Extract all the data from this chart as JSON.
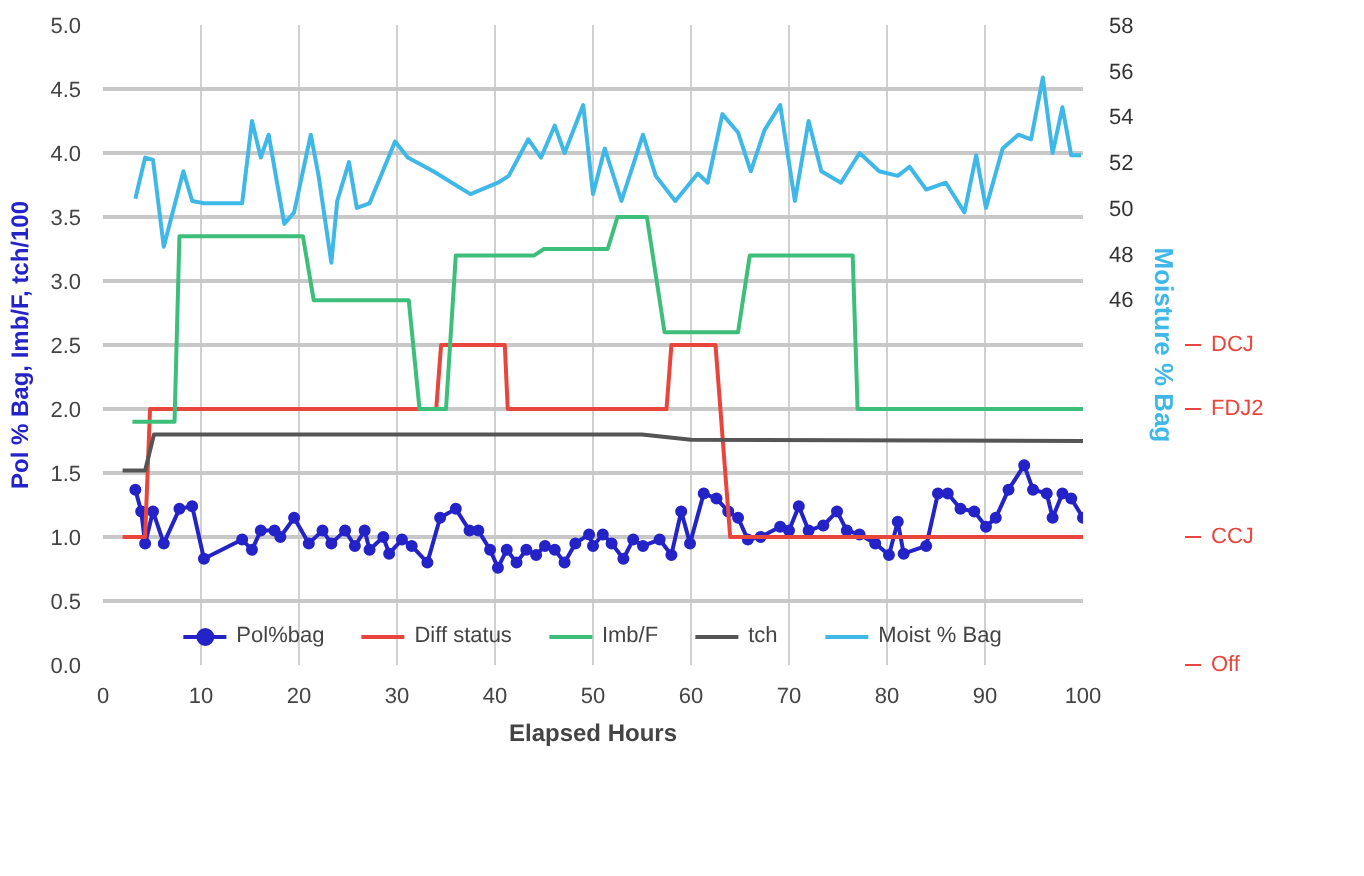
{
  "chart_data": {
    "type": "line",
    "xlabel": "Elapsed Hours",
    "ylabel": "Pol % Bag, Imb/F, tch/100",
    "y2label": "Moisture % Bag",
    "xlim": [
      0,
      100
    ],
    "xticks": [
      0,
      10,
      20,
      30,
      40,
      50,
      60,
      70,
      80,
      90,
      100
    ],
    "ylim": [
      0,
      5
    ],
    "yticks": [
      {
        "value": 0,
        "label": "0.0"
      },
      0.5,
      {
        "value": 1,
        "label": "1.0"
      },
      1.5,
      {
        "value": 2,
        "label": "2.0"
      },
      2.5,
      {
        "value": 3,
        "label": "3.0"
      },
      3.5,
      {
        "value": 4,
        "label": "4.0"
      },
      4.5,
      {
        "value": 5,
        "label": "5.0"
      }
    ],
    "y2lim": [
      30,
      58
    ],
    "y2ticks": [
      46,
      48,
      50,
      52,
      54,
      56,
      58
    ],
    "annotations": [
      "Off",
      "CCJ",
      "FDJ2",
      "DCJ"
    ],
    "grid": true,
    "legend": "bottom",
    "series": [
      {
        "name": "Pol%bag",
        "color": "#2323c8",
        "marker": "circle",
        "x": [
          3.3,
          3.9,
          4.3,
          5.1,
          6.2,
          7.8,
          9.1,
          10.3,
          14.2,
          15.2,
          16.1,
          17.5,
          18.1,
          19.5,
          21.0,
          22.4,
          23.3,
          24.7,
          25.7,
          26.7,
          27.2,
          28.6,
          29.2,
          30.5,
          31.5,
          33.1,
          34.4,
          36.0,
          37.4,
          38.3,
          39.5,
          40.3,
          41.2,
          42.2,
          43.2,
          44.2,
          45.1,
          46.1,
          47.1,
          48.2,
          49.6,
          50.0,
          51.0,
          51.9,
          53.1,
          54.1,
          55.1,
          56.8,
          58.0,
          59.0,
          59.9,
          61.3,
          62.6,
          63.8,
          64.8,
          65.8,
          67.1,
          69.1,
          70.0,
          71.0,
          72.0,
          73.5,
          74.9,
          75.9,
          77.2,
          78.8,
          80.2,
          81.1,
          81.7,
          84.0,
          85.2,
          86.2,
          87.5,
          88.9,
          90.1,
          91.1,
          92.4,
          94.0,
          94.9,
          96.3,
          96.9,
          97.9,
          98.8,
          100
        ],
        "values": [
          1.37,
          1.2,
          0.95,
          1.2,
          0.95,
          1.22,
          1.24,
          0.83,
          0.98,
          0.9,
          1.05,
          1.05,
          1.0,
          1.15,
          0.95,
          1.05,
          0.95,
          1.05,
          0.93,
          1.05,
          0.9,
          1.0,
          0.87,
          0.98,
          0.93,
          0.8,
          1.15,
          1.22,
          1.05,
          1.05,
          0.9,
          0.76,
          0.9,
          0.8,
          0.9,
          0.86,
          0.93,
          0.9,
          0.8,
          0.95,
          1.02,
          0.93,
          1.02,
          0.95,
          0.83,
          0.98,
          0.93,
          0.98,
          0.86,
          1.2,
          0.95,
          1.34,
          1.3,
          1.2,
          1.15,
          0.98,
          1.0,
          1.08,
          1.05,
          1.24,
          1.05,
          1.09,
          1.2,
          1.05,
          1.02,
          0.95,
          0.86,
          1.12,
          0.87,
          0.93,
          1.34,
          1.34,
          1.22,
          1.2,
          1.08,
          1.15,
          1.37,
          1.56,
          1.37,
          1.34,
          1.15,
          1.34,
          1.3,
          1.15
        ]
      },
      {
        "name": "Diff status",
        "color": "#e8453c",
        "x": [
          2,
          4.3,
          4.8,
          34,
          34.5,
          41,
          41.3,
          57.5,
          58,
          62.5,
          64,
          100
        ],
        "values": [
          1,
          1,
          2,
          2,
          2.5,
          2.5,
          2,
          2,
          2.5,
          2.5,
          1,
          1
        ]
      },
      {
        "name": "Imb/F",
        "color": "#3dbf7a",
        "x": [
          3,
          7.3,
          7.8,
          20.4,
          21.5,
          31.2,
          32.3,
          35,
          36,
          44,
          45,
          51.5,
          52.5,
          55.5,
          57.3,
          64.8,
          66,
          76.5,
          77,
          100
        ],
        "values": [
          1.9,
          1.9,
          3.35,
          3.35,
          2.85,
          2.85,
          2.0,
          2.0,
          3.2,
          3.2,
          3.25,
          3.25,
          3.5,
          3.5,
          2.6,
          2.6,
          3.2,
          3.2,
          2.0,
          2.0
        ]
      },
      {
        "name": "tch",
        "color": "#555555",
        "x": [
          2,
          4.3,
          5.2,
          55,
          60,
          100
        ],
        "values": [
          1.52,
          1.52,
          1.8,
          1.8,
          1.76,
          1.75
        ]
      },
      {
        "name": "Moist % Bag",
        "color": "#3fb8e8",
        "axis": "y2",
        "x": [
          3.3,
          4.3,
          5.1,
          6.2,
          8.2,
          9.1,
          10.3,
          14.2,
          15.2,
          16.1,
          16.9,
          18.5,
          19.5,
          21.2,
          22.0,
          23.3,
          23.9,
          25.1,
          25.9,
          27.2,
          29.8,
          31.1,
          33.7,
          35.6,
          37.5,
          40.3,
          41.4,
          43.4,
          44.7,
          46.1,
          47.1,
          49.0,
          50.0,
          51.2,
          52.9,
          55.1,
          56.4,
          58.4,
          60.7,
          61.7,
          63.2,
          64.8,
          66.1,
          67.5,
          69.1,
          70.6,
          72.0,
          73.3,
          75.3,
          77.2,
          79.2,
          81.1,
          82.3,
          84.0,
          86.0,
          87.9,
          89.1,
          90.1,
          91.8,
          93.4,
          94.7,
          95.9,
          96.9,
          97.9,
          98.8,
          99.8
        ],
        "values": [
          50.4,
          52.2,
          52.1,
          48.3,
          51.6,
          50.3,
          50.2,
          50.2,
          53.8,
          52.2,
          53.2,
          49.3,
          49.8,
          53.2,
          51.4,
          47.6,
          50.3,
          52.0,
          50.0,
          50.2,
          52.9,
          52.2,
          51.6,
          51.1,
          50.6,
          51.1,
          51.4,
          53.0,
          52.2,
          53.6,
          52.4,
          54.5,
          50.6,
          52.6,
          50.3,
          53.2,
          51.4,
          50.3,
          51.5,
          51.1,
          54.1,
          53.3,
          51.6,
          53.4,
          54.5,
          50.3,
          53.8,
          51.6,
          51.1,
          52.4,
          51.6,
          51.4,
          51.8,
          50.8,
          51.1,
          49.8,
          52.3,
          50.0,
          52.6,
          53.2,
          53.0,
          55.7,
          52.4,
          54.4,
          52.3,
          52.3
        ]
      }
    ]
  }
}
